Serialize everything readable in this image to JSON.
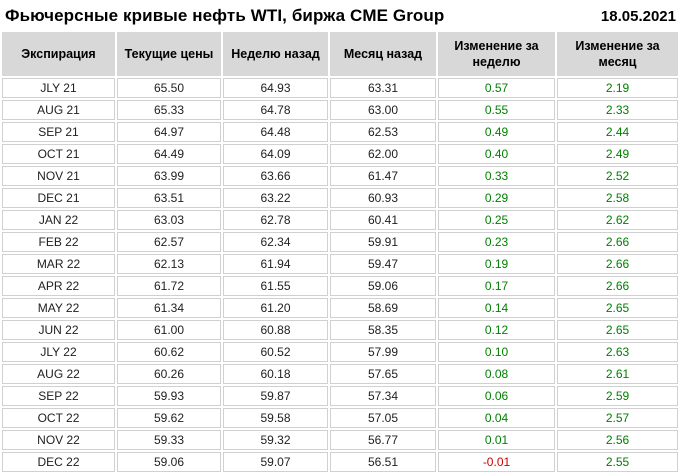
{
  "header": {
    "title": "Фьючерсные кривые нефть WTI, биржа CME Group",
    "date": "18.05.2021"
  },
  "table": {
    "columns": [
      "Экспирация",
      "Текущие цены",
      "Неделю назад",
      "Месяц назад",
      "Изменение за неделю",
      "Изменение за месяц"
    ],
    "rows": [
      {
        "expiration": "JLY 21",
        "current": "65.50",
        "week_ago": "64.93",
        "month_ago": "63.31",
        "week_change": "0.57",
        "month_change": "2.19"
      },
      {
        "expiration": "AUG 21",
        "current": "65.33",
        "week_ago": "64.78",
        "month_ago": "63.00",
        "week_change": "0.55",
        "month_change": "2.33"
      },
      {
        "expiration": "SEP 21",
        "current": "64.97",
        "week_ago": "64.48",
        "month_ago": "62.53",
        "week_change": "0.49",
        "month_change": "2.44"
      },
      {
        "expiration": "OCT 21",
        "current": "64.49",
        "week_ago": "64.09",
        "month_ago": "62.00",
        "week_change": "0.40",
        "month_change": "2.49"
      },
      {
        "expiration": "NOV 21",
        "current": "63.99",
        "week_ago": "63.66",
        "month_ago": "61.47",
        "week_change": "0.33",
        "month_change": "2.52"
      },
      {
        "expiration": "DEC 21",
        "current": "63.51",
        "week_ago": "63.22",
        "month_ago": "60.93",
        "week_change": "0.29",
        "month_change": "2.58"
      },
      {
        "expiration": "JAN 22",
        "current": "63.03",
        "week_ago": "62.78",
        "month_ago": "60.41",
        "week_change": "0.25",
        "month_change": "2.62"
      },
      {
        "expiration": "FEB 22",
        "current": "62.57",
        "week_ago": "62.34",
        "month_ago": "59.91",
        "week_change": "0.23",
        "month_change": "2.66"
      },
      {
        "expiration": "MAR 22",
        "current": "62.13",
        "week_ago": "61.94",
        "month_ago": "59.47",
        "week_change": "0.19",
        "month_change": "2.66"
      },
      {
        "expiration": "APR 22",
        "current": "61.72",
        "week_ago": "61.55",
        "month_ago": "59.06",
        "week_change": "0.17",
        "month_change": "2.66"
      },
      {
        "expiration": "MAY 22",
        "current": "61.34",
        "week_ago": "61.20",
        "month_ago": "58.69",
        "week_change": "0.14",
        "month_change": "2.65"
      },
      {
        "expiration": "JUN 22",
        "current": "61.00",
        "week_ago": "60.88",
        "month_ago": "58.35",
        "week_change": "0.12",
        "month_change": "2.65"
      },
      {
        "expiration": "JLY 22",
        "current": "60.62",
        "week_ago": "60.52",
        "month_ago": "57.99",
        "week_change": "0.10",
        "month_change": "2.63"
      },
      {
        "expiration": "AUG 22",
        "current": "60.26",
        "week_ago": "60.18",
        "month_ago": "57.65",
        "week_change": "0.08",
        "month_change": "2.61"
      },
      {
        "expiration": "SEP 22",
        "current": "59.93",
        "week_ago": "59.87",
        "month_ago": "57.34",
        "week_change": "0.06",
        "month_change": "2.59"
      },
      {
        "expiration": "OCT 22",
        "current": "59.62",
        "week_ago": "59.58",
        "month_ago": "57.05",
        "week_change": "0.04",
        "month_change": "2.57"
      },
      {
        "expiration": "NOV 22",
        "current": "59.33",
        "week_ago": "59.32",
        "month_ago": "56.77",
        "week_change": "0.01",
        "month_change": "2.56"
      },
      {
        "expiration": "DEC 22",
        "current": "59.06",
        "week_ago": "59.07",
        "month_ago": "56.51",
        "week_change": "-0.01",
        "month_change": "2.55"
      }
    ]
  },
  "colors": {
    "positive": "#008000",
    "negative": "#cc0000",
    "header_bg": "#d8d8d8",
    "grid_border": "#d0d0d0"
  }
}
